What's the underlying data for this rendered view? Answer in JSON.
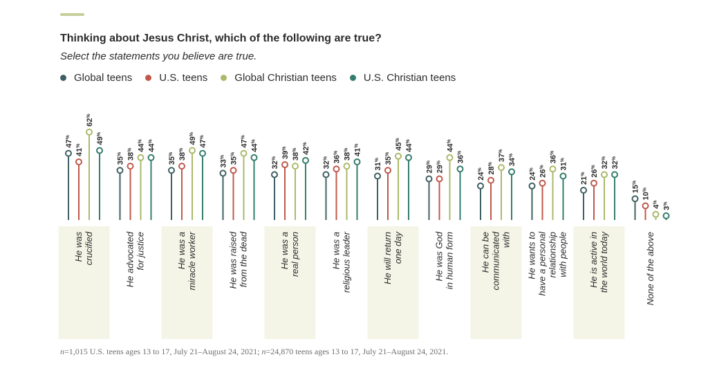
{
  "header": {
    "title": "Thinking about Jesus Christ, which of the following are true?",
    "subtitle": "Select the statements you believe are true."
  },
  "colors": {
    "accent": "#c6cf9a",
    "band": "#f4f5e7",
    "series": [
      "#3e5f63",
      "#c0574a",
      "#aab96a",
      "#347d6c"
    ]
  },
  "chart_data": {
    "type": "lollipop",
    "ylim": [
      0,
      100
    ],
    "value_suffix": "%",
    "series": [
      {
        "name": "Global teens",
        "values": [
          47,
          35,
          35,
          33,
          32,
          32,
          31,
          29,
          24,
          24,
          21,
          15
        ]
      },
      {
        "name": "U.S. teens",
        "values": [
          41,
          38,
          38,
          35,
          39,
          36,
          35,
          29,
          28,
          26,
          26,
          10
        ]
      },
      {
        "name": "Global Christian teens",
        "values": [
          62,
          44,
          49,
          47,
          38,
          38,
          45,
          44,
          37,
          36,
          32,
          4
        ]
      },
      {
        "name": "U.S. Christian teens",
        "values": [
          49,
          44,
          47,
          44,
          42,
          41,
          44,
          36,
          34,
          31,
          32,
          3
        ]
      }
    ],
    "categories": [
      [
        "He was",
        "crucified"
      ],
      [
        "He advocated",
        "for justice"
      ],
      [
        "He was a",
        "miracle worker"
      ],
      [
        "He was raised",
        "from the dead"
      ],
      [
        "He was a",
        "real person"
      ],
      [
        "He was a",
        "religious leader"
      ],
      [
        "He will return",
        "one day"
      ],
      [
        "He was God",
        "in human form"
      ],
      [
        "He can be",
        "communicated",
        "with"
      ],
      [
        "He wants to",
        "have a personal",
        "relationship",
        "with people"
      ],
      [
        "He is active in",
        "the world today"
      ],
      [
        "None of the above"
      ]
    ]
  },
  "footnote": {
    "n_label": "n",
    "text": "=1,015 U.S. teens ages 13 to 17, July 21–August 24, 2021; ",
    "n_label2": "n",
    "text2": "=24,870 teens ages 13 to 17, July 21–August 24, 2021."
  }
}
